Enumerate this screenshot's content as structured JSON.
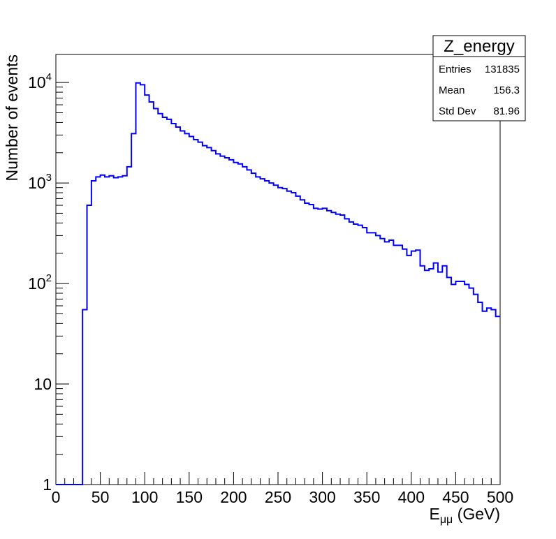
{
  "chart_data": {
    "type": "histogram",
    "ylabel": "Number of events",
    "xlabel_main": "E",
    "xlabel_sub": "μμ",
    "xlabel_unit": " (GeV)",
    "xlim": [
      0,
      500
    ],
    "ylim": [
      1,
      19000
    ],
    "yscale": "log",
    "grid": false,
    "line_color": "#0000ff",
    "bin_width": 5,
    "x_ticks": [
      "0",
      "50",
      "100",
      "150",
      "200",
      "250",
      "300",
      "350",
      "400",
      "450",
      "500"
    ],
    "y_ticks": [
      {
        "base": "1",
        "exp": "",
        "value": 1
      },
      {
        "base": "10",
        "exp": "",
        "value": 10
      },
      {
        "base": "10",
        "exp": "2",
        "value": 100
      },
      {
        "base": "10",
        "exp": "3",
        "value": 1000
      },
      {
        "base": "10",
        "exp": "4",
        "value": 10000
      }
    ],
    "values": [
      1,
      1,
      1,
      1,
      1,
      1,
      55,
      600,
      1050,
      1150,
      1200,
      1150,
      1180,
      1130,
      1150,
      1180,
      1450,
      3100,
      9900,
      9500,
      7500,
      6400,
      5500,
      4900,
      4500,
      4300,
      3900,
      3600,
      3300,
      3100,
      2900,
      2700,
      2550,
      2350,
      2250,
      2100,
      1950,
      1850,
      1780,
      1700,
      1600,
      1550,
      1450,
      1350,
      1250,
      1150,
      1100,
      1050,
      1000,
      950,
      900,
      880,
      830,
      800,
      740,
      680,
      630,
      610,
      560,
      550,
      560,
      530,
      510,
      490,
      480,
      440,
      410,
      390,
      380,
      360,
      320,
      320,
      300,
      280,
      260,
      270,
      240,
      240,
      220,
      190,
      210,
      215,
      150,
      135,
      140,
      160,
      130,
      150,
      115,
      98,
      105,
      105,
      98,
      90,
      78,
      65,
      53,
      57,
      55,
      47
    ],
    "legend": {
      "title": "Z_energy",
      "placement": "top-right",
      "rows": [
        {
          "label": "Entries",
          "value": "131835"
        },
        {
          "label": "Mean",
          "value": "156.3"
        },
        {
          "label": "Std Dev",
          "value": "81.96"
        }
      ]
    }
  }
}
